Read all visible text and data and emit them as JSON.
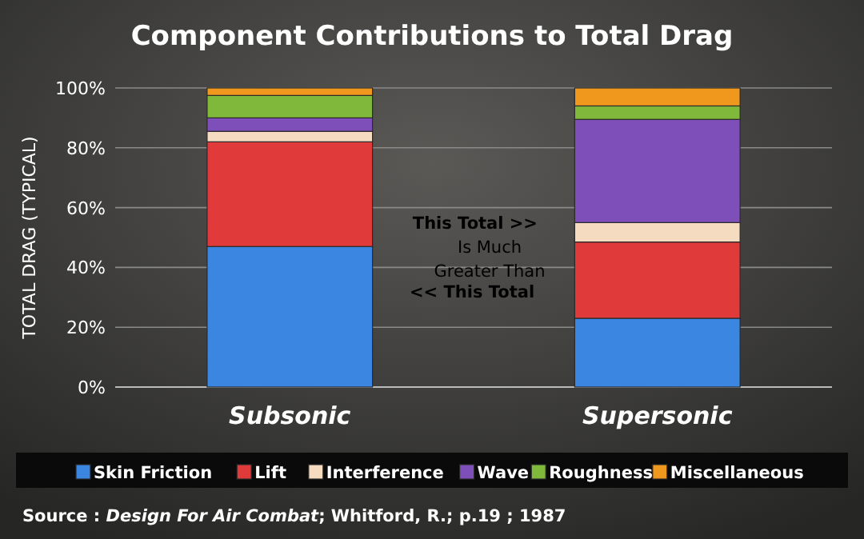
{
  "chart_data": {
    "type": "bar",
    "title": "Component Contributions to Total Drag",
    "ylabel": "TOTAL DRAG (TYPICAL)",
    "categories": [
      "Subsonic",
      "Supersonic"
    ],
    "stacked": true,
    "series": [
      {
        "name": "Skin Friction",
        "color": "#3a86e0",
        "values": [
          47,
          23
        ]
      },
      {
        "name": "Lift",
        "color": "#e03a3a",
        "values": [
          35,
          25.5
        ]
      },
      {
        "name": "Interference",
        "color": "#f5dcc0",
        "values": [
          3.5,
          6.5
        ]
      },
      {
        "name": "Wave",
        "color": "#7e4fb8",
        "values": [
          4.5,
          34.5
        ]
      },
      {
        "name": "Roughness",
        "color": "#7fb83a",
        "values": [
          7.5,
          4.5
        ]
      },
      {
        "name": "Miscellaneous",
        "color": "#f0981e",
        "values": [
          2.5,
          6
        ]
      }
    ],
    "ylim": [
      0,
      100
    ],
    "yticks": [
      {
        "value": 0,
        "label": "0%"
      },
      {
        "value": 20,
        "label": "20%"
      },
      {
        "value": 40,
        "label": "40%"
      },
      {
        "value": 60,
        "label": "60%"
      },
      {
        "value": 80,
        "label": "80%"
      },
      {
        "value": 100,
        "label": "100%"
      }
    ],
    "grid": "y",
    "legend": "bottom",
    "annotations": [
      "This Total >>",
      "Is Much",
      "Greater Than",
      "<< This Total",
      "Source : Design For Air Combat; Whitford, R.; p.19 ; 1987"
    ]
  }
}
